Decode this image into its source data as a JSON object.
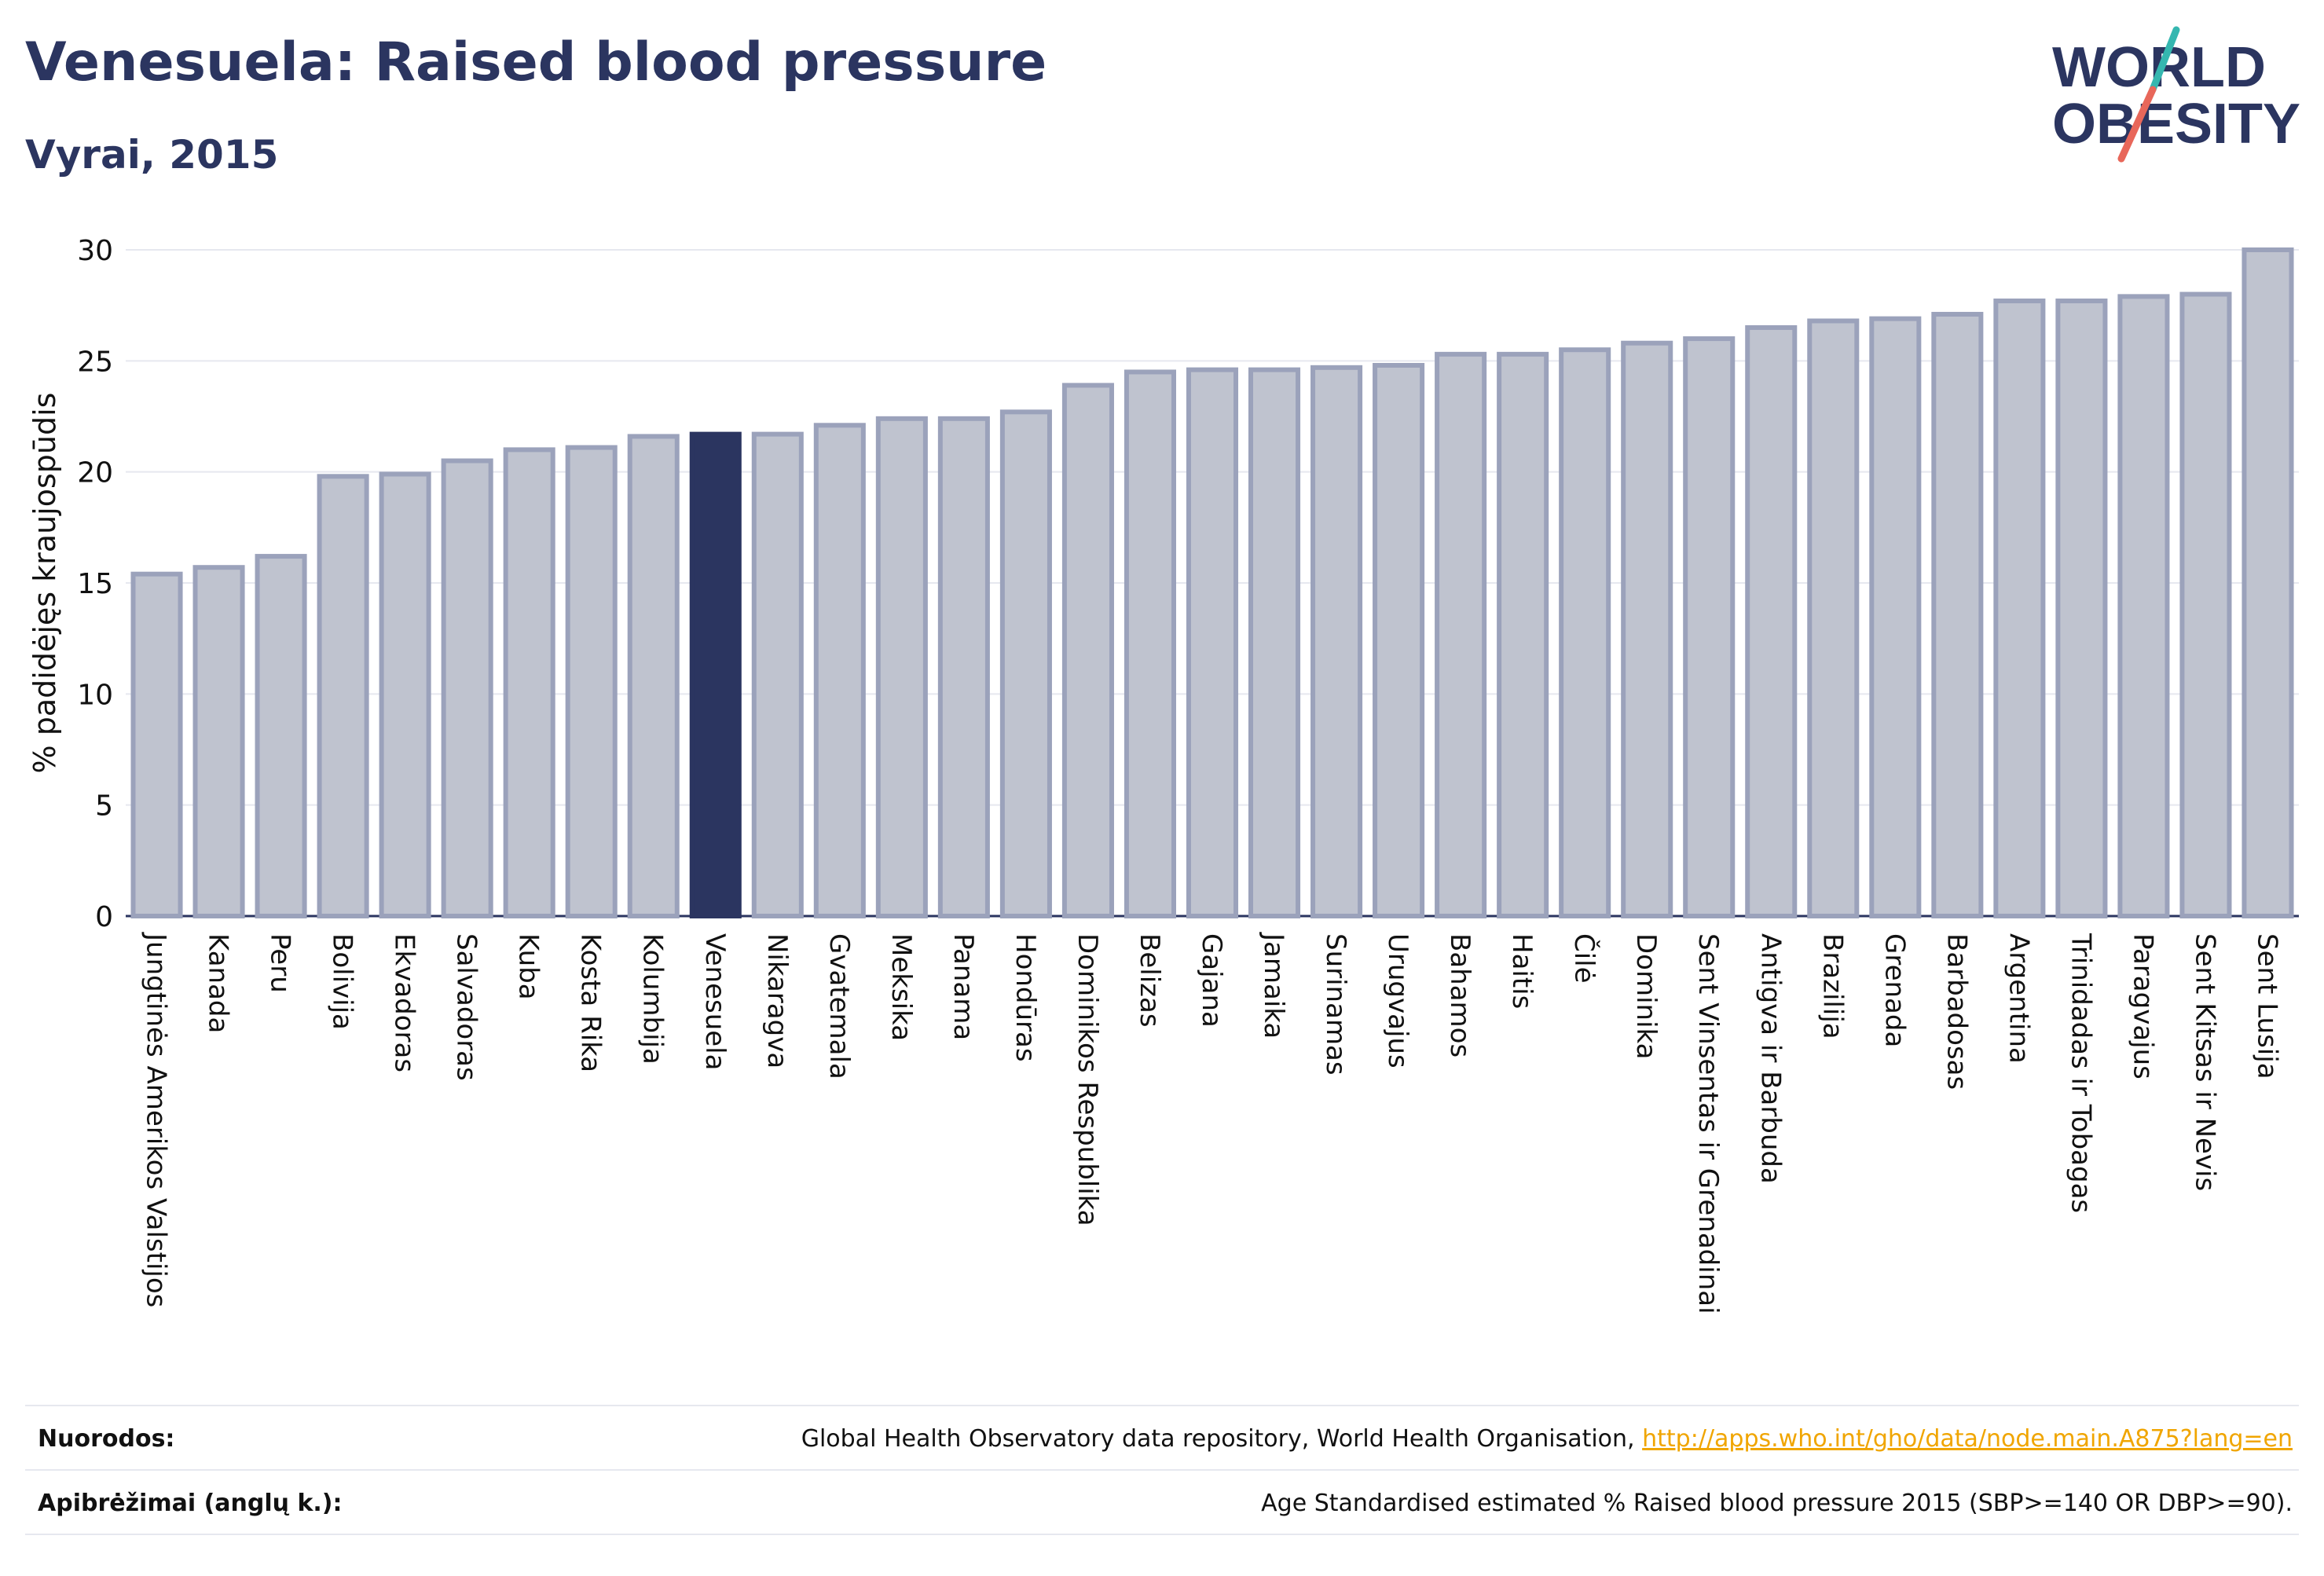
{
  "header": {
    "title": "Venesuela: Raised blood pressure",
    "subtitle": "Vyrai, 2015"
  },
  "logo": {
    "line1": "WORLD",
    "line2": "OBESITY",
    "accent_teal": "#35b7b0",
    "accent_red": "#e8675a",
    "text_color": "#2b3560"
  },
  "colors": {
    "bar_fill": "#bfc3cf",
    "bar_stroke": "#9ba2bb",
    "highlight_fill": "#2b3560",
    "grid": "#e6e8ef",
    "axis": "#2b3560"
  },
  "chart_data": {
    "type": "bar",
    "ylabel": "% padidėjęs kraujospūdis",
    "ylim": [
      0,
      30
    ],
    "yticks": [
      0,
      5,
      10,
      15,
      20,
      25,
      30
    ],
    "grid": true,
    "highlight": "Venesuela",
    "categories": [
      "Jungtinės Amerikos Valstijos",
      "Kanada",
      "Peru",
      "Bolivija",
      "Ekvadoras",
      "Salvadoras",
      "Kuba",
      "Kosta Rika",
      "Kolumbija",
      "Venesuela",
      "Nikaragva",
      "Gvatemala",
      "Meksika",
      "Panama",
      "Hondūras",
      "Dominikos Respublika",
      "Belizas",
      "Gajana",
      "Jamaika",
      "Surinamas",
      "Urugvajus",
      "Bahamos",
      "Haitis",
      "Čilė",
      "Dominika",
      "Sent Vinsentas ir Grenadinai",
      "Antigva ir Barbuda",
      "Brazilija",
      "Grenada",
      "Barbadosas",
      "Argentina",
      "Trinidadas ir Tobagas",
      "Paragvajus",
      "Sent Kitsas ir Nevis",
      "Sent Lusija"
    ],
    "values": [
      15.4,
      15.7,
      16.2,
      19.8,
      19.9,
      20.5,
      21.0,
      21.1,
      21.6,
      21.7,
      21.7,
      22.1,
      22.4,
      22.4,
      22.7,
      23.9,
      24.5,
      24.6,
      24.6,
      24.7,
      24.8,
      25.3,
      25.3,
      25.5,
      25.8,
      26.0,
      26.5,
      26.8,
      26.9,
      27.1,
      27.7,
      27.7,
      27.9,
      28.0,
      30.0
    ]
  },
  "footer": {
    "references_label": "Nuorodos:",
    "references_text": "Global Health Observatory data repository, World Health Organisation,",
    "references_link": "http://apps.who.int/gho/data/node.main.A875?lang=en",
    "definitions_label": "Apibrėžimai (anglų k.):",
    "definitions_text": "Age Standardised estimated % Raised blood pressure 2015 (SBP>=140 OR DBP>=90)."
  }
}
